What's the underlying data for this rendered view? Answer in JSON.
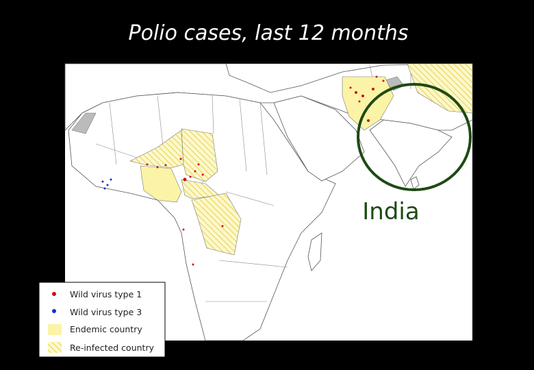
{
  "title": "Polio cases, last 12 months",
  "annotation": "India",
  "legend": {
    "items": [
      "Wild virus type 1",
      "Wild virus type 3",
      "Endemic country",
      "Re-infected country"
    ]
  }
}
